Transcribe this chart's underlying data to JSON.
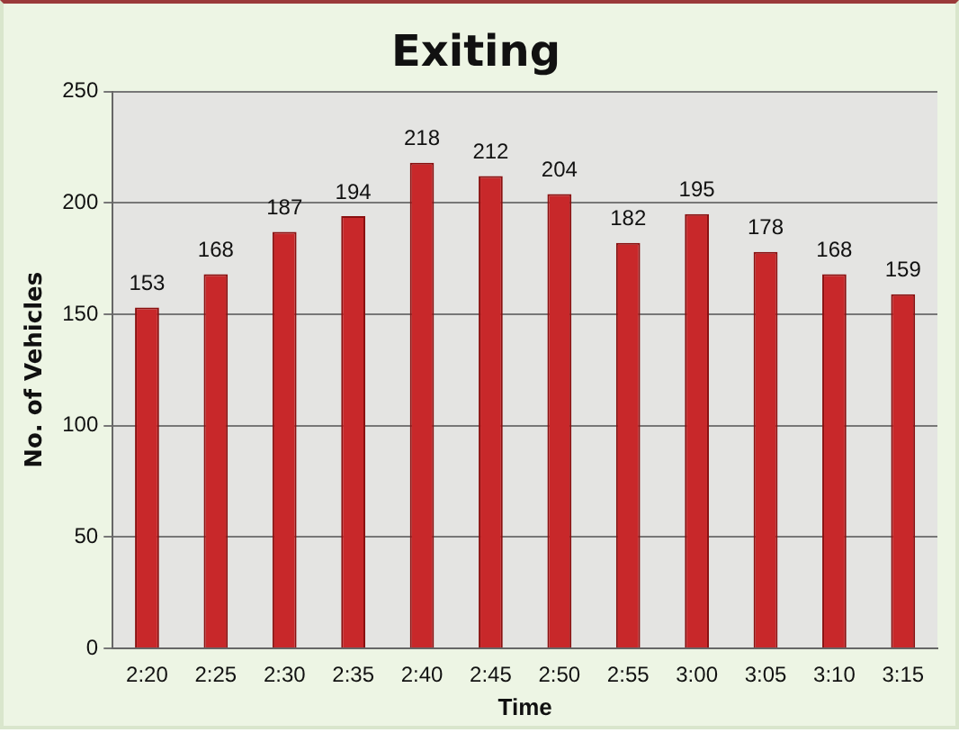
{
  "chart_data": {
    "type": "bar",
    "title": "Exiting",
    "xlabel": "Time",
    "ylabel": "No. of Vehicles",
    "categories": [
      "2:20",
      "2:25",
      "2:30",
      "2:35",
      "2:40",
      "2:45",
      "2:50",
      "2:55",
      "3:00",
      "3:05",
      "3:10",
      "3:15"
    ],
    "values": [
      153,
      168,
      187,
      194,
      218,
      212,
      204,
      182,
      195,
      178,
      168,
      159
    ],
    "color": "#c8282a",
    "ylim": [
      0,
      250
    ],
    "yticks": [
      0,
      50,
      100,
      150,
      200,
      250
    ],
    "grid": "y",
    "data_labels": true
  }
}
